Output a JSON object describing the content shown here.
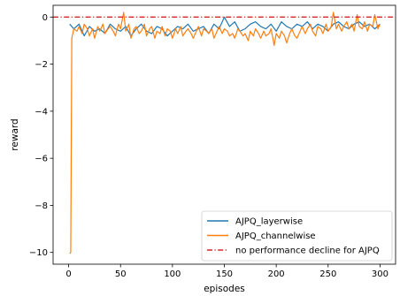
{
  "chart_data": {
    "type": "line",
    "title": "",
    "xlabel": "episodes",
    "ylabel": "reward",
    "xlim": [
      -15,
      315
    ],
    "ylim": [
      -10.5,
      0.5
    ],
    "xticks": [
      0,
      50,
      100,
      150,
      200,
      250,
      300
    ],
    "yticks": [
      0,
      -2,
      -4,
      -6,
      -8,
      -10
    ],
    "ytick_labels": [
      "0",
      "−2",
      "−4",
      "−6",
      "−8",
      "−10"
    ],
    "grid": false,
    "legend_position": "lower-right",
    "series": [
      {
        "name": "AJPQ_layerwise",
        "color": "#1f77b4",
        "x": [
          1,
          5,
          10,
          15,
          20,
          25,
          30,
          35,
          40,
          45,
          50,
          55,
          60,
          65,
          70,
          75,
          80,
          85,
          90,
          95,
          100,
          105,
          110,
          115,
          120,
          125,
          130,
          135,
          140,
          145,
          150,
          155,
          160,
          165,
          170,
          175,
          180,
          185,
          190,
          195,
          200,
          205,
          210,
          215,
          220,
          225,
          230,
          235,
          240,
          245,
          250,
          255,
          260,
          265,
          270,
          275,
          280,
          285,
          290,
          295,
          300
        ],
        "y": [
          -0.3,
          -0.5,
          -0.3,
          -0.8,
          -0.4,
          -0.6,
          -0.5,
          -0.7,
          -0.3,
          -0.5,
          -0.6,
          -0.4,
          -0.8,
          -0.5,
          -0.3,
          -0.6,
          -0.7,
          -0.4,
          -0.5,
          -0.8,
          -0.6,
          -0.4,
          -0.5,
          -0.3,
          -0.6,
          -0.5,
          -0.4,
          -0.7,
          -0.3,
          -0.5,
          0.0,
          -0.4,
          -0.2,
          -0.6,
          -0.5,
          -0.3,
          -0.2,
          -0.4,
          -0.5,
          -0.3,
          -0.6,
          -0.2,
          -0.4,
          -0.5,
          -0.3,
          -0.4,
          -0.2,
          -0.5,
          -0.3,
          -0.4,
          -0.6,
          -0.3,
          -0.2,
          -0.4,
          -0.5,
          -0.3,
          -0.2,
          -0.4,
          -0.3,
          -0.5,
          -0.3
        ]
      },
      {
        "name": "AJPQ_channelwise",
        "color": "#ff7f0e",
        "x": [
          1,
          2,
          3,
          5,
          8,
          10,
          13,
          15,
          18,
          20,
          23,
          25,
          28,
          30,
          33,
          35,
          38,
          40,
          43,
          45,
          48,
          50,
          53,
          55,
          58,
          60,
          63,
          65,
          68,
          70,
          73,
          75,
          78,
          80,
          83,
          85,
          88,
          90,
          93,
          95,
          98,
          100,
          103,
          105,
          108,
          110,
          113,
          115,
          118,
          120,
          123,
          125,
          128,
          130,
          133,
          135,
          138,
          140,
          143,
          145,
          148,
          150,
          153,
          155,
          158,
          160,
          163,
          165,
          168,
          170,
          173,
          175,
          178,
          180,
          183,
          185,
          188,
          190,
          193,
          195,
          198,
          200,
          203,
          205,
          208,
          210,
          213,
          215,
          218,
          220,
          223,
          225,
          228,
          230,
          233,
          235,
          238,
          240,
          243,
          245,
          248,
          250,
          253,
          255,
          258,
          260,
          263,
          265,
          268,
          270,
          273,
          275,
          278,
          280,
          283,
          285,
          288,
          290,
          293,
          295,
          298,
          300
        ],
        "y": [
          -10.05,
          -10.0,
          -0.9,
          -0.5,
          -0.6,
          -0.4,
          -0.7,
          -0.3,
          -0.5,
          -0.8,
          -0.5,
          -0.9,
          -0.4,
          -0.6,
          -0.3,
          -0.7,
          -0.5,
          -0.4,
          -0.6,
          -0.8,
          -0.3,
          -0.5,
          0.2,
          -0.6,
          -0.3,
          -0.9,
          -0.5,
          -0.4,
          -0.7,
          -0.6,
          -0.3,
          -0.8,
          -0.5,
          -0.4,
          -0.9,
          -0.6,
          -0.7,
          -0.4,
          -0.8,
          -0.5,
          -0.6,
          -0.9,
          -0.5,
          -0.7,
          -0.4,
          -0.8,
          -0.6,
          -0.5,
          -0.7,
          -0.9,
          -0.6,
          -0.4,
          -0.8,
          -0.5,
          -0.6,
          -0.7,
          -0.5,
          -0.9,
          -0.6,
          -0.4,
          -0.7,
          -0.5,
          -0.6,
          -0.8,
          -0.7,
          -0.9,
          -0.5,
          -0.6,
          -0.8,
          -0.7,
          -1.0,
          -0.6,
          -0.8,
          -0.5,
          -0.7,
          -0.9,
          -0.6,
          -0.8,
          -0.7,
          -0.5,
          -1.2,
          -0.7,
          -0.9,
          -0.6,
          -0.8,
          -1.1,
          -0.7,
          -0.5,
          -0.8,
          -0.9,
          -0.6,
          -0.4,
          -0.7,
          -0.5,
          -0.3,
          -0.6,
          -0.8,
          -0.4,
          -0.5,
          -0.7,
          -0.3,
          -0.6,
          -0.4,
          0.2,
          -0.5,
          -0.3,
          -0.6,
          -0.4,
          -0.2,
          -0.5,
          -0.3,
          -0.6,
          0.1,
          -0.4,
          -0.5,
          -0.2,
          -0.6,
          -0.3,
          -0.4,
          0.1,
          -0.5,
          -0.3
        ]
      },
      {
        "name": "no performance decline for AJPQ",
        "color": "#d62728",
        "style": "dashdot",
        "x": [
          -15,
          315
        ],
        "y": [
          0,
          0
        ]
      }
    ]
  }
}
